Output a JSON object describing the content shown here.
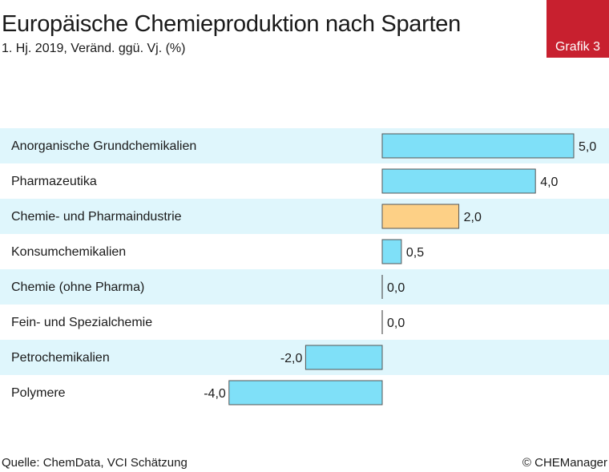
{
  "header": {
    "title": "Europäische Chemieproduktion nach Sparten",
    "subtitle": "1. Hj. 2019, Veränd. ggü. Vj. (%)",
    "badge": "Grafik 3"
  },
  "footer": {
    "source": "Quelle: ChemData, VCI Schätzung",
    "copyright": "© CHEManager"
  },
  "colors": {
    "bar": "#7fe0f8",
    "highlight_bar": "#fdd086",
    "bar_stroke": "#555555",
    "stripe": "#dff6fc",
    "badge": "#c8202f"
  },
  "chart_data": {
    "type": "bar",
    "orientation": "horizontal",
    "categories": [
      "Anorganische Grundchemikalien",
      "Pharmazeutika",
      "Chemie- und Pharmaindustrie",
      "Konsumchemikalien",
      "Chemie (ohne Pharma)",
      "Fein- und Spezialchemie",
      "Petrochemikalien",
      "Polymere"
    ],
    "values": [
      5.0,
      4.0,
      2.0,
      0.5,
      0.0,
      0.0,
      -2.0,
      -4.0
    ],
    "value_labels": [
      "5,0",
      "4,0",
      "2,0",
      "0,5",
      "0,0",
      "0,0",
      "-2,0",
      "-4,0"
    ],
    "highlight_index": 2,
    "xlim": [
      -4,
      5
    ],
    "grid": false,
    "legend": "none"
  }
}
